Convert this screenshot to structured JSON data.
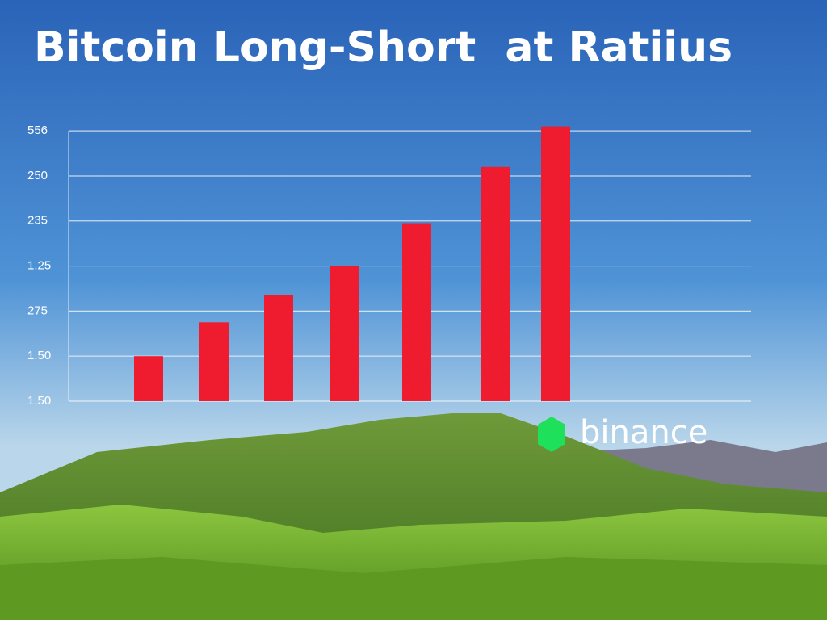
{
  "chart_data": {
    "type": "bar",
    "title": "Bitcoin Long-Short  at Ratiius",
    "categories": [
      null,
      null,
      null,
      null,
      null,
      null,
      null
    ],
    "values": [
      1.0,
      1.75,
      2.35,
      3.0,
      3.95,
      5.2,
      6.1
    ],
    "color": "#ee1c2e",
    "ylim": [
      0,
      6.2
    ],
    "yticks": [
      {
        "value": 0,
        "label": "1.50"
      },
      {
        "value": 1,
        "label": "1.50"
      },
      {
        "value": 2,
        "label": "275"
      },
      {
        "value": 3,
        "label": "1.25"
      },
      {
        "value": 4,
        "label": "235"
      },
      {
        "value": 5,
        "label": "250"
      },
      {
        "value": 6,
        "label": "556"
      }
    ],
    "grid": true,
    "logo_text": "binance"
  }
}
